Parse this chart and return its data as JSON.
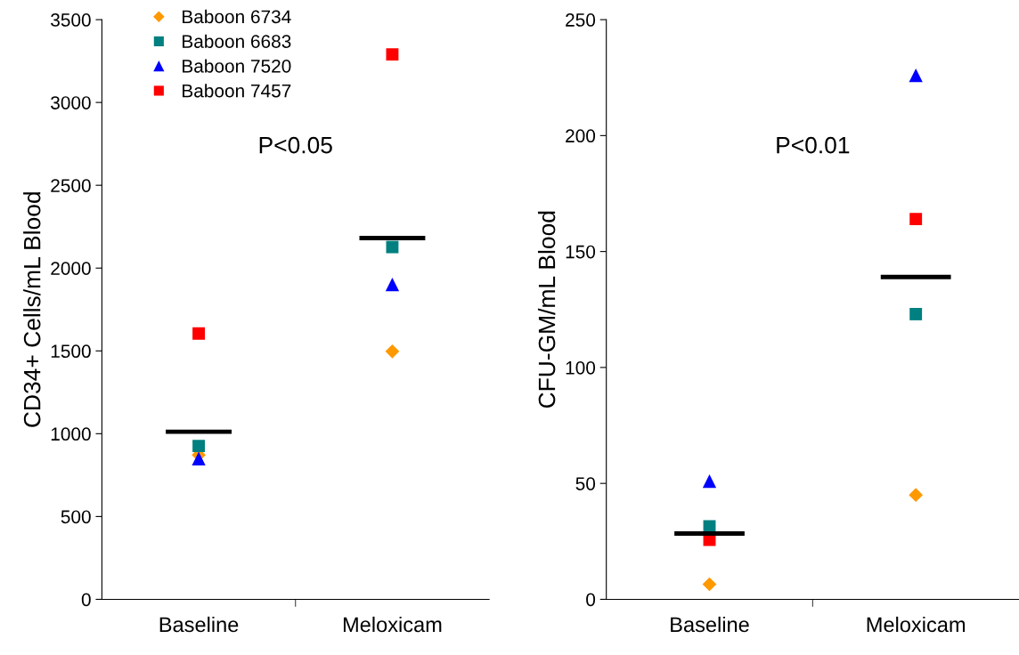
{
  "chart_data": [
    {
      "type": "scatter",
      "ylabel": "CD34+ Cells/mL Blood",
      "categories": [
        "Baseline",
        "Meloxicam"
      ],
      "ylim": [
        0,
        3500
      ],
      "yticks": [
        0,
        500,
        1000,
        1500,
        2000,
        2500,
        3000,
        3500
      ],
      "grid": false,
      "legend": "top left",
      "annotations": [
        "P<0.05"
      ],
      "series": [
        {
          "name": "Baboon 6734",
          "color": "#ff9900",
          "marker": "diamond",
          "values": [
            872,
            1497
          ]
        },
        {
          "name": "Baboon 6683",
          "color": "#008080",
          "marker": "square",
          "values": [
            926,
            2127
          ]
        },
        {
          "name": "Baboon 7520",
          "color": "#0000ff",
          "marker": "triangle",
          "values": [
            850,
            1901
          ]
        },
        {
          "name": "Baboon 7457",
          "color": "#ff0000",
          "marker": "square",
          "values": [
            1605,
            3290
          ]
        }
      ],
      "ref_lines": [
        {
          "axis": "y",
          "value": 1012,
          "color": "#000000"
        },
        {
          "axis": "y",
          "value": 2181,
          "color": "#000000"
        }
      ]
    },
    {
      "type": "scatter",
      "ylabel": "CFU-GM/mL Blood",
      "categories": [
        "Baseline",
        "Meloxicam"
      ],
      "ylim": [
        0,
        250
      ],
      "yticks": [
        0,
        50,
        100,
        150,
        200,
        250
      ],
      "grid": false,
      "legend": false,
      "annotations": [
        "P<0.01"
      ],
      "series": [
        {
          "color": "#ff9900",
          "marker": "diamond",
          "values": [
            6.5,
            45
          ]
        },
        {
          "color": "#008080",
          "marker": "square",
          "values": [
            31.5,
            123
          ]
        },
        {
          "color": "#0000ff",
          "marker": "triangle",
          "values": [
            51,
            226
          ]
        },
        {
          "color": "#ff0000",
          "marker": "square",
          "values": [
            25.7,
            164
          ]
        }
      ],
      "ref_lines": [
        {
          "axis": "y",
          "value": 28.4,
          "color": "#000000"
        },
        {
          "axis": "y",
          "value": 139,
          "color": "#000000"
        }
      ]
    }
  ]
}
